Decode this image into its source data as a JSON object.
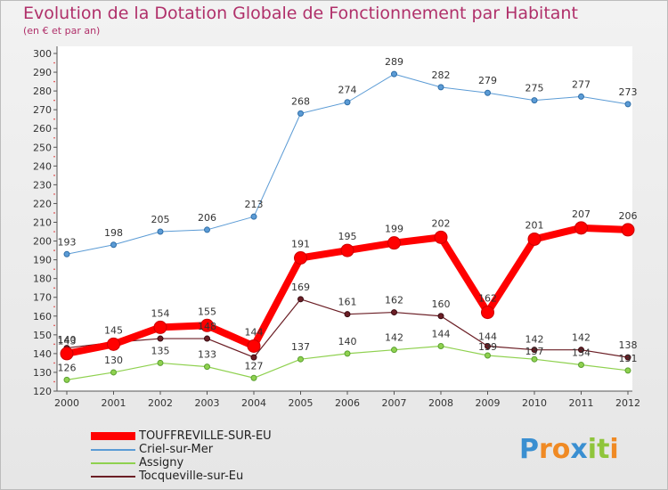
{
  "title": "Evolution de la Dotation Globale de Fonctionnement par Habitant",
  "subtitle": "(en € et par an)",
  "chart_data": {
    "type": "line",
    "title": "Evolution de la Dotation Globale de Fonctionnement par Habitant",
    "subtitle": "(en € et par an)",
    "xlabel": "",
    "ylabel": "",
    "ylim": [
      120,
      300
    ],
    "y_ticks": [
      120,
      130,
      140,
      150,
      160,
      170,
      180,
      190,
      200,
      210,
      220,
      230,
      240,
      250,
      260,
      270,
      280,
      290,
      300
    ],
    "grid": false,
    "legend_position": "bottom-left",
    "categories": [
      "2000",
      "2001",
      "2002",
      "2003",
      "2004",
      "2005",
      "2006",
      "2007",
      "2008",
      "2009",
      "2010",
      "2011",
      "2012"
    ],
    "series": [
      {
        "name": "Criel-sur-Mer",
        "color": "#5b9bd5",
        "values": [
          193,
          198,
          205,
          206,
          213,
          268,
          274,
          289,
          282,
          279,
          275,
          277,
          273
        ]
      },
      {
        "name": "Assigny",
        "color": "#8fd14f",
        "values": [
          126,
          130,
          135,
          133,
          127,
          137,
          140,
          142,
          144,
          139,
          137,
          134,
          131
        ]
      },
      {
        "name": "Tocqueville-sur-Eu",
        "color": "#6b1e25",
        "values": [
          143,
          146,
          148,
          148,
          138,
          169,
          161,
          162,
          160,
          144,
          142,
          142,
          138
        ]
      },
      {
        "name": "TOUFFREVILLE-SUR-EU",
        "color": "#ff0000",
        "values": [
          140,
          145,
          154,
          155,
          144,
          191,
          195,
          199,
          202,
          162,
          201,
          207,
          206
        ]
      }
    ],
    "labels_shown": {
      "Criel-sur-Mer": [
        "193",
        "198",
        "205",
        "206",
        "213",
        "268",
        "274",
        "289",
        "282",
        "279",
        "275",
        "277",
        "273"
      ],
      "Assigny": [
        "126",
        "130",
        "135",
        "133",
        "127",
        "137",
        "140",
        "142",
        "144",
        "",
        "",
        "134",
        "131"
      ],
      "Tocqueville-sur-Eu": [
        "143",
        "",
        "",
        "148",
        "",
        "169",
        "161",
        "162",
        "160",
        "",
        "",
        "142",
        "138"
      ],
      "TOUFFREVILLE-SUR-EU": [
        "140",
        "145",
        "154",
        "155",
        "144",
        "191",
        "195",
        "199",
        "202",
        "162",
        "201",
        "207",
        "206"
      ],
      "extra_2009": [
        "144",
        "139"
      ],
      "extra_2010": [
        "142",
        "137"
      ]
    }
  },
  "legend": [
    {
      "label": "TOUFFREVILLE-SUR-EU",
      "color": "#ff0000",
      "thickness": "thick"
    },
    {
      "label": "Criel-sur-Mer",
      "color": "#5b9bd5",
      "thickness": "thin"
    },
    {
      "label": "Assigny",
      "color": "#8fd14f",
      "thickness": "thin"
    },
    {
      "label": "Tocqueville-sur-Eu",
      "color": "#6b1e25",
      "thickness": "thin"
    }
  ],
  "logo": {
    "text": "Proxiti",
    "letters": [
      {
        "ch": "P",
        "color": "#3a8fd1"
      },
      {
        "ch": "r",
        "color": "#f08a24"
      },
      {
        "ch": "o",
        "color": "#f08a24"
      },
      {
        "ch": "x",
        "color": "#3a8fd1"
      },
      {
        "ch": "i",
        "color": "#8fc53b"
      },
      {
        "ch": "t",
        "color": "#8fc53b"
      },
      {
        "ch": "i",
        "color": "#f08a24"
      }
    ]
  }
}
